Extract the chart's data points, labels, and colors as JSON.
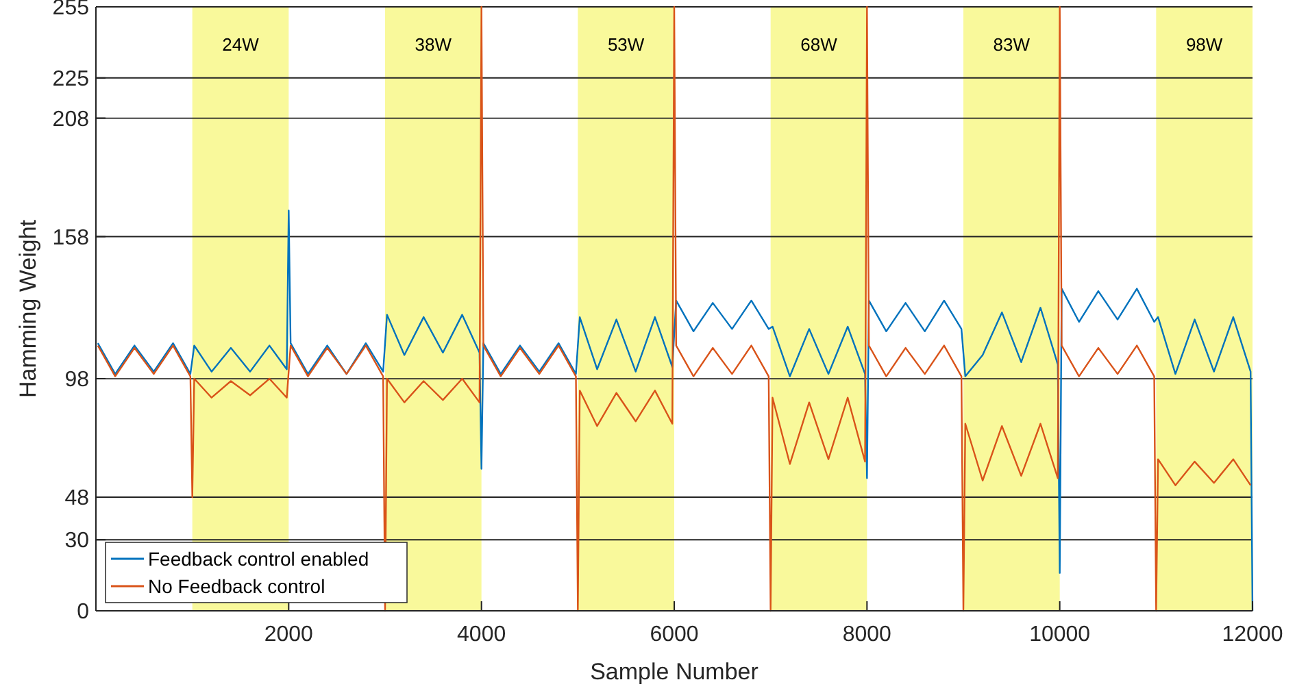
{
  "chart_data": {
    "type": "line",
    "xlabel": "Sample Number",
    "ylabel": "Hamming Weight",
    "xlim": [
      0,
      12000
    ],
    "xticks": [
      2000,
      4000,
      6000,
      8000,
      10000,
      12000
    ],
    "ylim": [
      0,
      255
    ],
    "yticks": [
      0,
      30,
      48,
      98,
      158,
      208,
      225,
      255
    ],
    "grid": "y",
    "legend": "bottom left",
    "bands": [
      {
        "axis": "x",
        "from": 1000,
        "to": 2000,
        "label": "24W",
        "color": "#f9f99b"
      },
      {
        "axis": "x",
        "from": 3000,
        "to": 4000,
        "label": "38W",
        "color": "#f9f99b"
      },
      {
        "axis": "x",
        "from": 5000,
        "to": 6000,
        "label": "53W",
        "color": "#f9f99b"
      },
      {
        "axis": "x",
        "from": 7000,
        "to": 8000,
        "label": "68W",
        "color": "#f9f99b"
      },
      {
        "axis": "x",
        "from": 9000,
        "to": 10000,
        "label": "83W",
        "color": "#f9f99b"
      },
      {
        "axis": "x",
        "from": 11000,
        "to": 12000,
        "label": "98W",
        "color": "#f9f99b"
      }
    ],
    "series": [
      {
        "name": "Feedback control enabled",
        "color": "#0072bd",
        "x": [
          20,
          200,
          400,
          600,
          800,
          980,
          1020,
          1200,
          1400,
          1600,
          1800,
          1980,
          2000,
          2020,
          2200,
          2400,
          2600,
          2800,
          2980,
          3020,
          3200,
          3400,
          3600,
          3800,
          3980,
          4000,
          4020,
          4200,
          4400,
          4600,
          4800,
          4980,
          5020,
          5200,
          5400,
          5600,
          5800,
          5980,
          6020,
          6200,
          6400,
          6600,
          6800,
          6980,
          7020,
          7200,
          7400,
          7600,
          7800,
          7980,
          8000,
          8020,
          8200,
          8400,
          8600,
          8800,
          8980,
          9020,
          9200,
          9400,
          9600,
          9800,
          9980,
          10000,
          10020,
          10200,
          10400,
          10600,
          10800,
          10980,
          11020,
          11200,
          11400,
          11600,
          11800,
          11980,
          12000
        ],
        "values": [
          113,
          100,
          112,
          101,
          113,
          100,
          112,
          101,
          111,
          101,
          112,
          102,
          169,
          113,
          100,
          112,
          100,
          113,
          101,
          125,
          108,
          124,
          109,
          125,
          109,
          60,
          113,
          100,
          112,
          101,
          113,
          100,
          124,
          102,
          123,
          101,
          124,
          103,
          131,
          118,
          130,
          119,
          131,
          119,
          120,
          99,
          119,
          100,
          120,
          100,
          56,
          131,
          118,
          130,
          118,
          131,
          119,
          99,
          108,
          126,
          105,
          128,
          104,
          16,
          136,
          122,
          135,
          123,
          136,
          122,
          124,
          100,
          123,
          101,
          124,
          101,
          0
        ]
      },
      {
        "name": "No Feedback control",
        "color": "#d95319",
        "x": [
          20,
          200,
          400,
          600,
          800,
          980,
          1000,
          1020,
          1200,
          1400,
          1600,
          1800,
          1980,
          2020,
          2200,
          2400,
          2600,
          2800,
          2980,
          3000,
          3020,
          3200,
          3400,
          3600,
          3800,
          3980,
          4000,
          4020,
          4200,
          4400,
          4600,
          4800,
          4980,
          5000,
          5020,
          5200,
          5400,
          5600,
          5800,
          5980,
          6000,
          6020,
          6200,
          6400,
          6600,
          6800,
          6980,
          7000,
          7020,
          7200,
          7400,
          7600,
          7800,
          7980,
          8000,
          8020,
          8200,
          8400,
          8600,
          8800,
          8980,
          9000,
          9020,
          9200,
          9400,
          9600,
          9800,
          9980,
          10000,
          10020,
          10200,
          10400,
          10600,
          10800,
          10980,
          11000,
          11020,
          11200,
          11400,
          11600,
          11800,
          11980
        ],
        "values": [
          112,
          99,
          111,
          100,
          112,
          99,
          48,
          98,
          90,
          97,
          91,
          98,
          90,
          112,
          99,
          111,
          100,
          112,
          99,
          0,
          98,
          88,
          97,
          89,
          98,
          88,
          255,
          112,
          99,
          111,
          100,
          112,
          99,
          0,
          93,
          78,
          92,
          80,
          93,
          79,
          255,
          112,
          99,
          111,
          100,
          112,
          99,
          0,
          90,
          62,
          88,
          64,
          90,
          63,
          255,
          112,
          99,
          111,
          100,
          112,
          99,
          0,
          79,
          55,
          78,
          57,
          79,
          56,
          255,
          112,
          99,
          111,
          100,
          112,
          99,
          0,
          64,
          53,
          63,
          54,
          64,
          53
        ]
      }
    ]
  }
}
